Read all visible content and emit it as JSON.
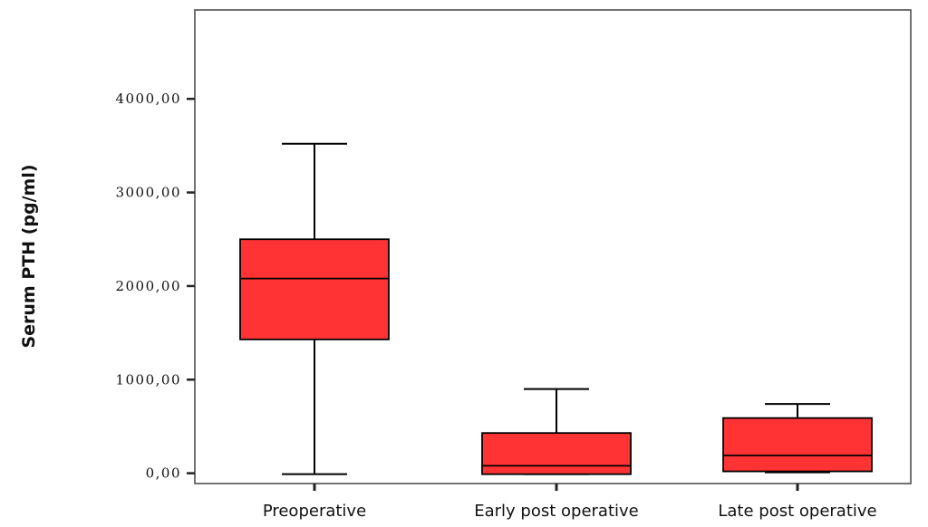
{
  "chart_data": {
    "type": "box",
    "title": "",
    "xlabel": "",
    "ylabel": "Serum PTH (pg/ml)",
    "ylim": [
      -110,
      4950
    ],
    "y_ticks": [
      {
        "value": 0,
        "label": "0,00"
      },
      {
        "value": 1000,
        "label": "1000,00"
      },
      {
        "value": 2000,
        "label": "2000,00"
      },
      {
        "value": 3000,
        "label": "3000,00"
      },
      {
        "value": 4000,
        "label": "4000,00"
      }
    ],
    "categories": [
      "Preoperative",
      "Early post operative",
      "Late post operative"
    ],
    "boxes": [
      {
        "category": "Preoperative",
        "min": -10,
        "q1": 1430,
        "median": 2080,
        "q3": 2500,
        "max": 3520
      },
      {
        "category": "Early post operative",
        "min": -10,
        "q1": -10,
        "median": 80,
        "q3": 430,
        "max": 900
      },
      {
        "category": "Late post operative",
        "min": 10,
        "q1": 20,
        "median": 190,
        "q3": 590,
        "max": 740
      }
    ],
    "box_color": "#FF3333",
    "line_color": "#000000",
    "grid": false,
    "legend": "none"
  }
}
